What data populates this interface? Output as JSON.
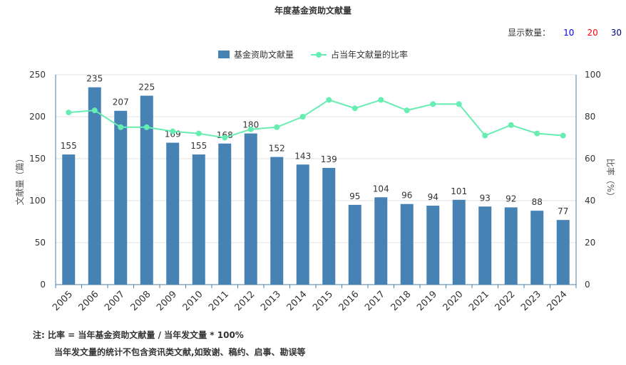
{
  "title": "年度基金资助文献量",
  "count_selector": {
    "label": "显示数量：",
    "options": [
      {
        "label": "10",
        "color": "#0000ff"
      },
      {
        "label": "20",
        "color": "#ff0000"
      },
      {
        "label": "30",
        "color": "#000080"
      }
    ]
  },
  "legend": {
    "bar_label": "基金资助文献量",
    "line_label": "占当年文献量的比率"
  },
  "notes": {
    "line1": "注:   比率 = 当年基金资助文献量 / 当年发文量 * 100%",
    "line2": "当年发文量的统计不包含资讯类文献,如致谢、稿约、启事、勘误等"
  },
  "chart_data": {
    "type": "bar",
    "categories": [
      "2005",
      "2006",
      "2007",
      "2008",
      "2009",
      "2010",
      "2011",
      "2012",
      "2013",
      "2014",
      "2015",
      "2016",
      "2017",
      "2018",
      "2019",
      "2020",
      "2021",
      "2022",
      "2023",
      "2024"
    ],
    "series": [
      {
        "name": "基金资助文献量",
        "type": "bar",
        "axis": "left",
        "color": "#4682b4",
        "values": [
          155,
          235,
          207,
          225,
          169,
          155,
          168,
          180,
          152,
          143,
          139,
          95,
          104,
          96,
          94,
          101,
          93,
          92,
          88,
          77
        ]
      },
      {
        "name": "占当年文献量的比率",
        "type": "line",
        "axis": "right",
        "color": "#66eeb2",
        "values": [
          82,
          83,
          75,
          75,
          73,
          72,
          70,
          74,
          75,
          80,
          88,
          84,
          88,
          83,
          86,
          86,
          71,
          76,
          72,
          71
        ]
      }
    ],
    "ylabel": "文献量（篇）",
    "y2label": "比率（%）",
    "ylim": [
      0,
      250
    ],
    "y2lim": [
      0,
      100
    ],
    "yticks": [
      0,
      50,
      100,
      150,
      200,
      250
    ],
    "y2ticks": [
      0,
      20,
      40,
      60,
      80,
      100
    ],
    "grid": true,
    "legend_position": "top-center"
  }
}
